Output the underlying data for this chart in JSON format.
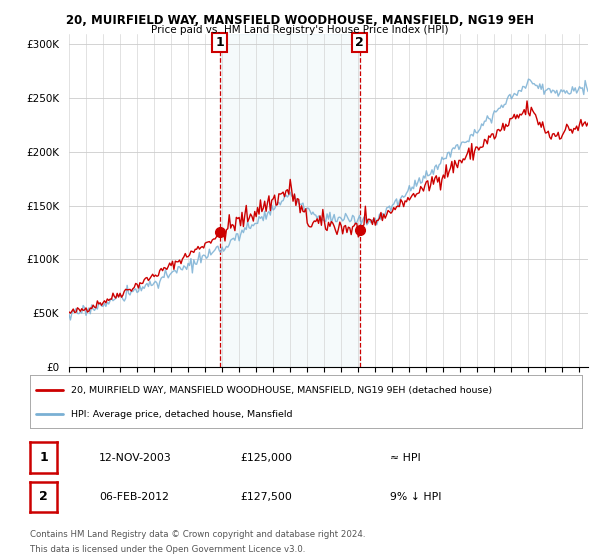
{
  "title1": "20, MUIRFIELD WAY, MANSFIELD WOODHOUSE, MANSFIELD, NG19 9EH",
  "title2": "Price paid vs. HM Land Registry's House Price Index (HPI)",
  "legend_line1": "20, MUIRFIELD WAY, MANSFIELD WOODHOUSE, MANSFIELD, NG19 9EH (detached house)",
  "legend_line2": "HPI: Average price, detached house, Mansfield",
  "footer1": "Contains HM Land Registry data © Crown copyright and database right 2024.",
  "footer2": "This data is licensed under the Open Government Licence v3.0.",
  "annotation1_label": "1",
  "annotation1_date": "12-NOV-2003",
  "annotation1_price": "£125,000",
  "annotation1_hpi": "≈ HPI",
  "annotation2_label": "2",
  "annotation2_date": "06-FEB-2012",
  "annotation2_price": "£127,500",
  "annotation2_hpi": "9% ↓ HPI",
  "ylim": [
    0,
    310000
  ],
  "yticks": [
    0,
    50000,
    100000,
    150000,
    200000,
    250000,
    300000
  ],
  "background_color": "#ffffff",
  "hpi_color": "#7ab0d4",
  "price_color": "#cc0000",
  "marker1_x": 2003.87,
  "marker1_y": 125000,
  "marker2_x": 2012.09,
  "marker2_y": 127500,
  "xmin": 1995,
  "xmax": 2025.5
}
